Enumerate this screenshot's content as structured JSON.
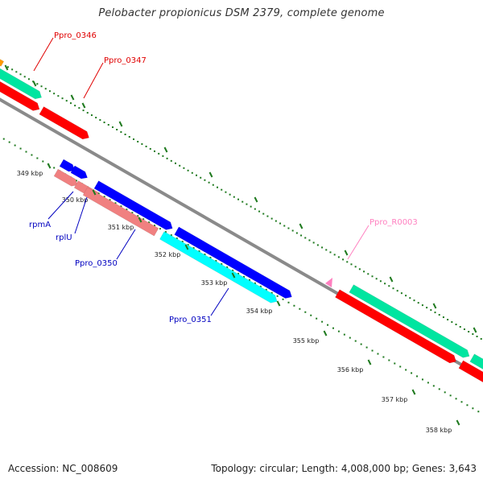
{
  "title": "Pelobacter propionicus DSM 2379, complete genome",
  "footer": {
    "accession": "Accession: NC_008609",
    "summary": "Topology: circular; Length: 4,008,000 bp; Genes: 3,643"
  },
  "colors": {
    "backbone": "#8a8a8a",
    "tick": "#1f7a1f",
    "cds_red": "#ff0000",
    "cds_green": "#00e5a0",
    "cds_blue": "#0000ff",
    "cds_pink": "#f08080",
    "cds_cyan": "#00ffff",
    "rna_pink": "#ff80c0",
    "label_red": "#e00000",
    "label_blue": "#0000c0",
    "label_pink": "#ff80c0"
  },
  "ticks": [
    "349 kbp",
    "350 kbp",
    "351 kbp",
    "352 kbp",
    "353 kbp",
    "354 kbp",
    "355 kbp",
    "356 kbp",
    "357 kbp",
    "358 kbp"
  ],
  "gene_labels": [
    {
      "id": "ppro0346",
      "text": "Ppro_0346",
      "color": "label_red"
    },
    {
      "id": "ppro0347",
      "text": "Ppro_0347",
      "color": "label_red"
    },
    {
      "id": "rpmA",
      "text": "rpmA",
      "color": "label_blue"
    },
    {
      "id": "rplU",
      "text": "rplU",
      "color": "label_blue"
    },
    {
      "id": "ppro0350",
      "text": "Ppro_0350",
      "color": "label_blue"
    },
    {
      "id": "ppro0351",
      "text": "Ppro_0351",
      "color": "label_blue"
    },
    {
      "id": "pproR0003",
      "text": "Ppro_R0003",
      "color": "label_pink"
    }
  ]
}
